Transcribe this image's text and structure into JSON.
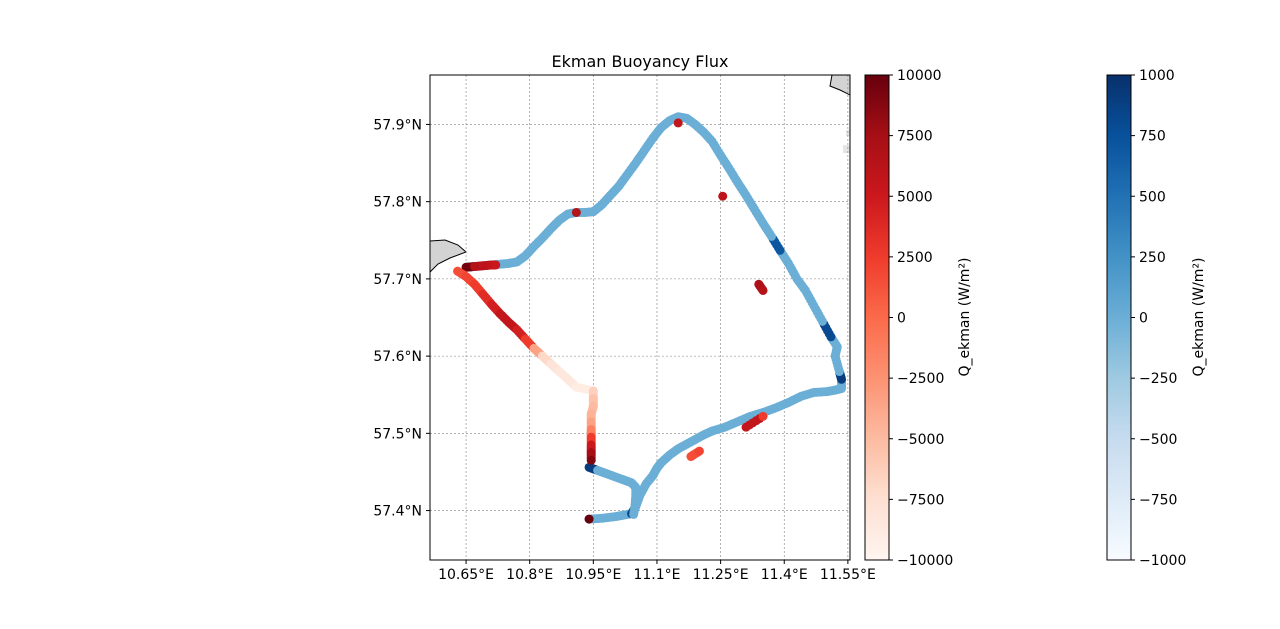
{
  "chart_data": {
    "type": "scatter",
    "title": "Ekman Buoyancy Flux",
    "x_tick_labels": [
      "10.65°E",
      "10.8°E",
      "10.95°E",
      "11.1°E",
      "11.25°E",
      "11.4°E",
      "11.55°E"
    ],
    "y_tick_labels": [
      "57.9°N",
      "57.8°N",
      "57.7°N",
      "57.6°N",
      "57.5°N",
      "57.4°N"
    ],
    "x_ticks": [
      10.65,
      10.8,
      10.95,
      11.1,
      11.25,
      11.4,
      11.55
    ],
    "y_ticks": [
      57.9,
      57.8,
      57.7,
      57.6,
      57.5,
      57.4
    ],
    "xlim": [
      10.565,
      11.555
    ],
    "ylim": [
      57.336,
      57.964
    ],
    "grid": true,
    "colorbars": [
      {
        "label": "Q_ekman (W/m²)",
        "colormap": "Reds",
        "range": [
          -10000,
          10000
        ],
        "tick_labels": [
          "10000",
          "7500",
          "5000",
          "2500",
          "0",
          "−2500",
          "−5000",
          "−7500",
          "−10000"
        ],
        "ticks": [
          10000,
          7500,
          5000,
          2500,
          0,
          -2500,
          -5000,
          -7500,
          -10000
        ]
      },
      {
        "label": "Q_ekman (W/m²)",
        "colormap": "Blues",
        "range": [
          -1000,
          1000
        ],
        "tick_labels": [
          "1000",
          "750",
          "500",
          "250",
          "0",
          "−250",
          "−500",
          "−750",
          "−1000"
        ],
        "ticks": [
          1000,
          750,
          500,
          250,
          0,
          -250,
          -500,
          -750,
          -1000
        ]
      }
    ],
    "series": [
      {
        "colormap": "Blues",
        "points": [
          [
            10.94,
            57.389,
            0
          ],
          [
            10.97,
            57.39,
            0
          ],
          [
            11.0,
            57.392,
            0
          ],
          [
            11.02,
            57.394,
            0
          ],
          [
            11.04,
            57.396,
            800
          ],
          [
            11.05,
            57.405,
            0
          ],
          [
            11.06,
            57.42,
            0
          ],
          [
            11.075,
            57.435,
            0
          ],
          [
            11.09,
            57.445,
            0
          ],
          [
            11.1,
            57.455,
            0
          ],
          [
            11.11,
            57.462,
            0
          ],
          [
            11.13,
            57.472,
            0
          ],
          [
            11.15,
            57.48,
            0
          ],
          [
            11.17,
            57.486,
            0
          ],
          [
            11.19,
            57.492,
            0
          ],
          [
            11.21,
            57.498,
            0
          ],
          [
            11.23,
            57.503,
            0
          ],
          [
            11.26,
            57.508,
            0
          ],
          [
            11.29,
            57.515,
            0
          ],
          [
            11.32,
            57.522,
            0
          ],
          [
            11.35,
            57.527,
            0
          ],
          [
            11.38,
            57.533,
            0
          ],
          [
            11.41,
            57.54,
            0
          ],
          [
            11.44,
            57.548,
            0
          ],
          [
            11.47,
            57.553,
            0
          ],
          [
            11.5,
            57.554,
            0
          ],
          [
            11.52,
            57.556,
            0
          ],
          [
            11.535,
            57.558,
            0
          ],
          [
            11.535,
            57.57,
            900
          ],
          [
            11.53,
            57.58,
            0
          ],
          [
            11.52,
            57.6,
            0
          ],
          [
            11.525,
            57.612,
            0
          ],
          [
            11.51,
            57.625,
            800
          ],
          [
            11.49,
            57.645,
            0
          ],
          [
            11.47,
            57.665,
            0
          ],
          [
            11.45,
            57.685,
            0
          ],
          [
            11.43,
            57.7,
            0
          ],
          [
            11.41,
            57.72,
            0
          ],
          [
            11.39,
            57.737,
            700
          ],
          [
            11.37,
            57.755,
            0
          ],
          [
            11.35,
            57.772,
            0
          ],
          [
            11.33,
            57.79,
            0
          ],
          [
            11.31,
            57.808,
            0
          ],
          [
            11.29,
            57.825,
            0
          ],
          [
            11.27,
            57.843,
            0
          ],
          [
            11.25,
            57.86,
            0
          ],
          [
            11.23,
            57.878,
            0
          ],
          [
            11.21,
            57.89,
            0
          ],
          [
            11.19,
            57.9,
            0
          ],
          [
            11.17,
            57.908,
            0
          ],
          [
            11.15,
            57.91,
            0
          ],
          [
            11.13,
            57.905,
            0
          ],
          [
            11.11,
            57.896,
            0
          ],
          [
            11.09,
            57.882,
            0
          ],
          [
            11.07,
            57.866,
            0
          ],
          [
            11.05,
            57.85,
            0
          ],
          [
            11.03,
            57.835,
            0
          ],
          [
            11.01,
            57.82,
            0
          ],
          [
            10.99,
            57.808,
            0
          ],
          [
            10.97,
            57.796,
            0
          ],
          [
            10.95,
            57.787,
            0
          ],
          [
            10.93,
            57.786,
            0
          ],
          [
            10.91,
            57.786,
            0
          ],
          [
            10.89,
            57.784,
            0
          ],
          [
            10.87,
            57.776,
            0
          ],
          [
            10.85,
            57.765,
            0
          ],
          [
            10.83,
            57.753,
            0
          ],
          [
            10.81,
            57.742,
            0
          ],
          [
            10.79,
            57.73,
            0
          ],
          [
            10.77,
            57.722,
            0
          ],
          [
            10.75,
            57.72,
            0
          ],
          [
            10.73,
            57.719,
            0
          ],
          [
            10.71,
            57.718,
            0
          ],
          [
            10.69,
            57.717,
            0
          ],
          [
            10.67,
            57.716,
            0
          ],
          [
            10.65,
            57.715,
            0
          ],
          [
            10.94,
            57.456,
            900
          ],
          [
            10.96,
            57.452,
            0
          ],
          [
            10.98,
            57.448,
            0
          ],
          [
            11.0,
            57.444,
            0
          ],
          [
            11.02,
            57.44,
            0
          ],
          [
            11.04,
            57.436,
            0
          ],
          [
            11.05,
            57.43,
            0
          ],
          [
            11.05,
            57.418,
            0
          ],
          [
            11.048,
            57.405,
            0
          ],
          [
            11.045,
            57.395,
            0
          ]
        ]
      },
      {
        "colormap": "Reds",
        "points": [
          [
            10.65,
            57.715,
            9500
          ],
          [
            10.67,
            57.716,
            6500
          ],
          [
            10.69,
            57.717,
            6000
          ],
          [
            10.71,
            57.718,
            5500
          ],
          [
            10.72,
            57.718,
            5000
          ],
          [
            10.63,
            57.71,
            1500
          ],
          [
            10.65,
            57.703,
            2000
          ],
          [
            10.67,
            57.693,
            2500
          ],
          [
            10.69,
            57.68,
            3500
          ],
          [
            10.71,
            57.667,
            4500
          ],
          [
            10.73,
            57.655,
            5500
          ],
          [
            10.75,
            57.644,
            5500
          ],
          [
            10.77,
            57.634,
            4500
          ],
          [
            10.79,
            57.622,
            2500
          ],
          [
            10.81,
            57.61,
            -3500
          ],
          [
            10.83,
            57.6,
            -7000
          ],
          [
            10.85,
            57.59,
            -8000
          ],
          [
            10.87,
            57.58,
            -8500
          ],
          [
            10.89,
            57.57,
            -8500
          ],
          [
            10.91,
            57.56,
            -9000
          ],
          [
            10.95,
            57.555,
            -6500
          ],
          [
            10.95,
            57.545,
            -5500
          ],
          [
            10.95,
            57.535,
            -5000
          ],
          [
            10.945,
            57.525,
            -4500
          ],
          [
            10.945,
            57.515,
            -3500
          ],
          [
            10.945,
            57.505,
            -1500
          ],
          [
            10.945,
            57.495,
            2500
          ],
          [
            10.945,
            57.485,
            5000
          ],
          [
            10.945,
            57.475,
            7500
          ],
          [
            10.945,
            57.465,
            9000
          ],
          [
            10.94,
            57.389,
            10000
          ],
          [
            10.91,
            57.786,
            6500
          ],
          [
            11.15,
            57.902,
            5500
          ],
          [
            11.255,
            57.807,
            6000
          ],
          [
            11.34,
            57.693,
            7000
          ],
          [
            11.35,
            57.685,
            6500
          ],
          [
            11.31,
            57.508,
            5500
          ],
          [
            11.35,
            57.522,
            2500
          ],
          [
            11.18,
            57.47,
            1500
          ],
          [
            11.2,
            57.477,
            2000
          ]
        ]
      }
    ]
  }
}
